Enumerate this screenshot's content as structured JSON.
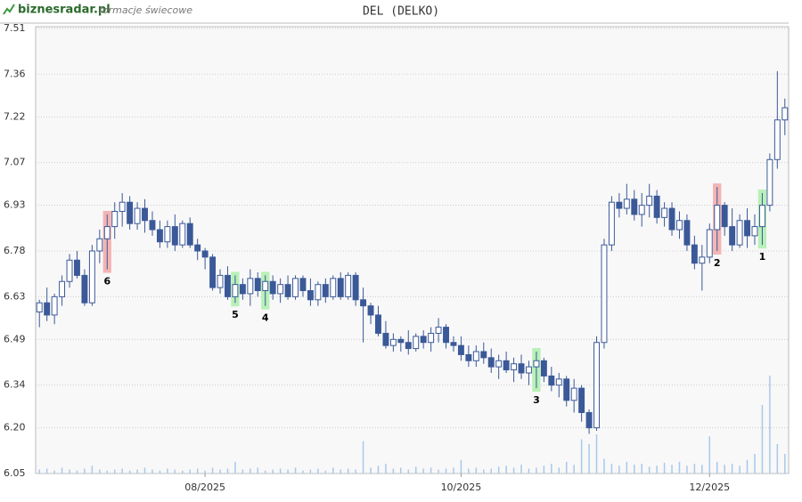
{
  "brand": {
    "logo": "biznesradar.pl",
    "subtitle": "formacje świecowe"
  },
  "chart_data": {
    "type": "candlestick",
    "title": "DEL (DELKO)",
    "categories": [
      null,
      null,
      null,
      null,
      null,
      null,
      null,
      null,
      null,
      null,
      null,
      null,
      null,
      null,
      null,
      null,
      null,
      null,
      null,
      null,
      null,
      null,
      null,
      null,
      null,
      null,
      null,
      null,
      null,
      null,
      null,
      null,
      null,
      null,
      null,
      null,
      null,
      null,
      null,
      null,
      null,
      null,
      null,
      null,
      null,
      null,
      null,
      null,
      null,
      null,
      null,
      null,
      null,
      null,
      null,
      null,
      null,
      null,
      null,
      null,
      null,
      null,
      null,
      null,
      null,
      null,
      null,
      null,
      null,
      null,
      null,
      null,
      null,
      null,
      null,
      null,
      null,
      null,
      null,
      null,
      null,
      null,
      null,
      null,
      null,
      null,
      null,
      null,
      null,
      null,
      null,
      null,
      null,
      null,
      null,
      null,
      null,
      null,
      null,
      null
    ],
    "open": [
      6.58,
      6.61,
      6.57,
      6.63,
      6.68,
      6.75,
      6.7,
      6.61,
      6.78,
      6.82,
      6.86,
      6.91,
      6.94,
      6.87,
      6.92,
      6.88,
      6.85,
      6.81,
      6.86,
      6.8,
      6.87,
      6.8,
      6.78,
      6.76,
      6.66,
      6.7,
      6.63,
      6.67,
      6.64,
      6.69,
      6.65,
      6.68,
      6.64,
      6.67,
      6.63,
      6.69,
      6.65,
      6.62,
      6.67,
      6.63,
      6.69,
      6.63,
      6.7,
      6.62,
      6.6,
      6.57,
      6.51,
      6.47,
      6.49,
      6.48,
      6.46,
      6.5,
      6.48,
      6.51,
      6.53,
      6.48,
      6.47,
      6.44,
      6.42,
      6.45,
      6.43,
      6.4,
      6.42,
      6.39,
      6.41,
      6.38,
      6.4,
      6.42,
      6.37,
      6.34,
      6.36,
      6.29,
      6.33,
      6.25,
      6.2,
      6.48,
      6.8,
      6.94,
      6.92,
      6.95,
      6.9,
      6.93,
      6.96,
      6.89,
      6.92,
      6.85,
      6.88,
      6.8,
      6.74,
      6.76,
      6.85,
      6.93,
      6.86,
      6.8,
      6.88,
      6.83,
      6.86,
      6.93,
      7.08,
      7.21
    ],
    "high": [
      6.62,
      6.66,
      6.64,
      6.7,
      6.77,
      6.78,
      6.72,
      6.8,
      6.85,
      6.9,
      6.94,
      6.97,
      6.96,
      6.94,
      6.95,
      6.91,
      6.88,
      6.88,
      6.9,
      6.88,
      6.89,
      6.82,
      6.79,
      6.77,
      6.72,
      6.73,
      6.7,
      6.69,
      6.72,
      6.71,
      6.7,
      6.7,
      6.69,
      6.7,
      6.7,
      6.7,
      6.69,
      6.68,
      6.69,
      6.7,
      6.71,
      6.71,
      6.71,
      6.66,
      6.61,
      6.6,
      6.55,
      6.51,
      6.5,
      6.52,
      6.51,
      6.52,
      6.53,
      6.56,
      6.54,
      6.5,
      6.5,
      6.47,
      6.47,
      6.48,
      6.46,
      6.44,
      6.45,
      6.43,
      6.44,
      6.42,
      6.45,
      6.43,
      6.4,
      6.38,
      6.37,
      6.36,
      6.34,
      6.26,
      6.5,
      6.82,
      6.96,
      6.97,
      7.0,
      6.98,
      6.97,
      7.0,
      6.98,
      6.94,
      6.94,
      6.91,
      6.9,
      6.83,
      6.8,
      6.87,
      6.99,
      6.94,
      6.92,
      6.9,
      6.92,
      6.9,
      6.97,
      7.1,
      7.37,
      7.28
    ],
    "low": [
      6.53,
      6.55,
      6.54,
      6.6,
      6.66,
      6.69,
      6.6,
      6.6,
      6.74,
      6.72,
      6.82,
      6.86,
      6.85,
      6.85,
      6.84,
      6.83,
      6.79,
      6.79,
      6.78,
      6.79,
      6.79,
      6.75,
      6.72,
      6.65,
      6.64,
      6.62,
      6.61,
      6.62,
      6.6,
      6.63,
      6.6,
      6.62,
      6.61,
      6.62,
      6.62,
      6.63,
      6.6,
      6.6,
      6.61,
      6.62,
      6.62,
      6.62,
      6.6,
      6.48,
      6.54,
      6.5,
      6.46,
      6.45,
      6.45,
      6.44,
      6.45,
      6.46,
      6.45,
      6.48,
      6.46,
      6.45,
      6.42,
      6.4,
      6.4,
      6.41,
      6.38,
      6.36,
      6.38,
      6.35,
      6.36,
      6.34,
      6.33,
      6.35,
      6.32,
      6.3,
      6.27,
      6.25,
      6.22,
      6.18,
      6.19,
      6.46,
      6.78,
      6.89,
      6.9,
      6.88,
      6.86,
      6.89,
      6.87,
      6.86,
      6.83,
      6.82,
      6.78,
      6.72,
      6.65,
      6.74,
      6.78,
      6.83,
      6.78,
      6.79,
      6.79,
      6.8,
      6.8,
      6.91,
      7.05,
      7.16
    ],
    "close": [
      6.61,
      6.57,
      6.63,
      6.68,
      6.75,
      6.7,
      6.61,
      6.78,
      6.82,
      6.86,
      6.91,
      6.94,
      6.87,
      6.92,
      6.88,
      6.85,
      6.81,
      6.86,
      6.8,
      6.87,
      6.8,
      6.78,
      6.76,
      6.66,
      6.7,
      6.63,
      6.67,
      6.64,
      6.69,
      6.65,
      6.68,
      6.64,
      6.67,
      6.63,
      6.69,
      6.65,
      6.62,
      6.67,
      6.63,
      6.69,
      6.63,
      6.7,
      6.62,
      6.6,
      6.57,
      6.51,
      6.47,
      6.49,
      6.48,
      6.46,
      6.5,
      6.48,
      6.51,
      6.53,
      6.48,
      6.47,
      6.44,
      6.42,
      6.45,
      6.43,
      6.4,
      6.42,
      6.39,
      6.41,
      6.38,
      6.4,
      6.42,
      6.37,
      6.34,
      6.36,
      6.29,
      6.33,
      6.25,
      6.2,
      6.48,
      6.8,
      6.94,
      6.92,
      6.95,
      6.9,
      6.93,
      6.96,
      6.89,
      6.92,
      6.85,
      6.88,
      6.8,
      6.74,
      6.76,
      6.85,
      6.93,
      6.86,
      6.8,
      6.88,
      6.83,
      6.86,
      6.93,
      7.08,
      7.21,
      7.25
    ],
    "volume": [
      4,
      5,
      3,
      6,
      4,
      3,
      5,
      8,
      4,
      3,
      4,
      5,
      3,
      4,
      6,
      4,
      3,
      5,
      4,
      3,
      4,
      5,
      3,
      6,
      4,
      5,
      12,
      4,
      5,
      6,
      3,
      4,
      5,
      4,
      6,
      3,
      4,
      5,
      3,
      6,
      4,
      5,
      4,
      33,
      6,
      8,
      10,
      5,
      6,
      4,
      7,
      5,
      6,
      4,
      5,
      6,
      14,
      5,
      6,
      4,
      5,
      7,
      8,
      6,
      9,
      5,
      6,
      8,
      10,
      6,
      12,
      9,
      35,
      30,
      40,
      15,
      10,
      8,
      12,
      9,
      10,
      7,
      8,
      11,
      9,
      12,
      8,
      10,
      9,
      38,
      12,
      9,
      10,
      8,
      14,
      20,
      70,
      100,
      30,
      20
    ],
    "volume_lim": [
      0,
      100
    ],
    "up_color": "#ffffff",
    "down_color": "#3b5998",
    "volume_color": "#a9c8ec",
    "ylim": [
      6.05,
      7.51
    ],
    "yticks": [
      6.05,
      {
        "value": 6.2,
        "label": "6.20"
      },
      6.34,
      6.49,
      6.63,
      6.78,
      6.93,
      7.07,
      7.22,
      7.36,
      7.51
    ],
    "xticks": [
      {
        "value": 22,
        "label": "08/2025"
      },
      {
        "value": 56,
        "label": "10/2025"
      },
      {
        "value": 89,
        "label": "12/2025"
      }
    ],
    "grid": true,
    "patterns": [
      {
        "label": "6",
        "index": 9,
        "color": "#f4b4b4"
      },
      {
        "label": "5",
        "index": 26,
        "color": "#b8f0b8"
      },
      {
        "label": "4",
        "index": 30,
        "color": "#b8f0b8"
      },
      {
        "label": "3",
        "index": 66,
        "color": "#b8f0b8"
      },
      {
        "label": "2",
        "index": 90,
        "color": "#f4b4b4"
      },
      {
        "label": "1",
        "index": 96,
        "color": "#b8f0b8"
      }
    ]
  }
}
